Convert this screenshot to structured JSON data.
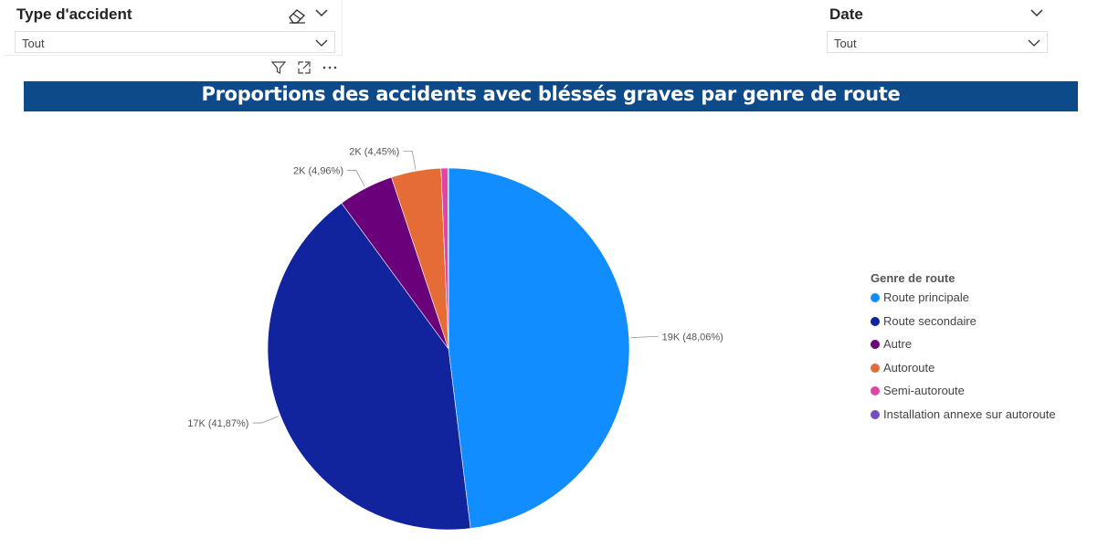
{
  "slicers": [
    {
      "title": "Type d'accident",
      "value": "Tout"
    },
    {
      "title": "Date",
      "value": "Tout"
    }
  ],
  "icons": {
    "eraser": "eraser-icon",
    "chevron": "chevron-down-icon",
    "filter": "filter-icon",
    "focus": "focus-mode-icon",
    "more": "more-options-icon"
  },
  "chart_data": {
    "type": "pie",
    "title": "Proportions des accidents avec bléssés graves par genre de route",
    "legend_title": "Genre de route",
    "legend_position": "right",
    "categories": [
      "Route principale",
      "Route secondaire",
      "Autre",
      "Autoroute",
      "Semi-autoroute",
      "Installation annexe sur autoroute"
    ],
    "values": [
      48.06,
      41.87,
      4.96,
      4.45,
      0.6,
      0.06
    ],
    "colors": [
      "#118dff",
      "#12239e",
      "#6b007b",
      "#e66c37",
      "#e044a7",
      "#744ec2"
    ],
    "data_labels": [
      "19K (48,06%)",
      "17K (41,87%)",
      "2K (4,96%)",
      "2K (4,45%)",
      "",
      ""
    ]
  }
}
